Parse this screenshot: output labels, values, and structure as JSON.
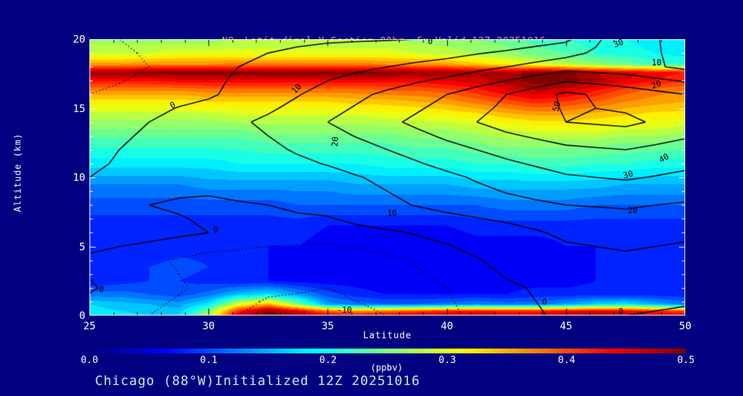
{
  "page": {
    "background": "#000080",
    "accent_axis_color": "#ffffff",
    "contour_line_color": "#000000"
  },
  "title": {
    "prefix": "NO",
    "subscript": "2",
    "rest": " Latitudinal Y-Section 00hr  Fx Valid 12Z 20251016",
    "color": "#ff8a8a"
  },
  "caption": {
    "text": "Chicago (88°W)Initialized 12Z 20251016",
    "color": "#bfeeee"
  },
  "axes": {
    "y_label": "Altitude (km)",
    "x_label": "Latitude",
    "y_ticks": [
      "0",
      "5",
      "10",
      "15",
      "20"
    ],
    "y_tick_values": [
      0,
      5,
      10,
      15,
      20
    ],
    "x_ticks": [
      "25",
      "30",
      "35",
      "40",
      "45",
      "50"
    ],
    "x_tick_values": [
      25,
      30,
      35,
      40,
      45,
      50
    ],
    "x_minor_step": 1,
    "y_minor_step": 1
  },
  "colorbar": {
    "unit": "(ppbv)",
    "ticks": [
      "0.0",
      "0.1",
      "0.2",
      "0.3",
      "0.4",
      "0.5"
    ],
    "tick_values": [
      0.0,
      0.1,
      0.2,
      0.3,
      0.4,
      0.5
    ],
    "range": [
      0,
      0.5
    ]
  },
  "chart_data": {
    "type": "heatmap",
    "title": "NO2 Latitudinal Y-Section 00hr  Fx Valid 12Z 20251016",
    "xlabel": "Latitude",
    "ylabel": "Altitude (km)",
    "x_range": [
      25,
      50
    ],
    "y_range": [
      0,
      20
    ],
    "fill_units": "ppbv",
    "fill_range": [
      0,
      0.5
    ],
    "colormap": "jet",
    "fill_lats": [
      25,
      26.25,
      27.5,
      28.75,
      30,
      31.25,
      32.5,
      33.75,
      35,
      36.25,
      37.5,
      38.75,
      40,
      41.25,
      42.5,
      43.75,
      45,
      46.25,
      47.5,
      48.75,
      50
    ],
    "fill_alts": [
      0,
      0.3,
      0.8,
      1.5,
      2.5,
      3.5,
      5,
      6.5,
      8,
      9.5,
      11,
      12.5,
      13.5,
      14.5,
      15.5,
      16.3,
      17,
      17.6,
      18.2,
      19,
      20
    ],
    "fill_values": [
      [
        0.19,
        0.18,
        0.17,
        0.17,
        0.28,
        0.46,
        0.5,
        0.48,
        0.45,
        0.44,
        0.45,
        0.46,
        0.47,
        0.47,
        0.46,
        0.46,
        0.47,
        0.48,
        0.47,
        0.46,
        0.45
      ],
      [
        0.18,
        0.17,
        0.16,
        0.16,
        0.25,
        0.42,
        0.5,
        0.45,
        0.38,
        0.36,
        0.38,
        0.4,
        0.42,
        0.43,
        0.42,
        0.42,
        0.44,
        0.45,
        0.44,
        0.42,
        0.4
      ],
      [
        0.17,
        0.16,
        0.15,
        0.14,
        0.18,
        0.3,
        0.35,
        0.25,
        0.14,
        0.12,
        0.11,
        0.11,
        0.12,
        0.13,
        0.12,
        0.12,
        0.14,
        0.17,
        0.18,
        0.15,
        0.12
      ],
      [
        0.12,
        0.12,
        0.11,
        0.1,
        0.12,
        0.16,
        0.18,
        0.14,
        0.1,
        0.08,
        0.07,
        0.07,
        0.07,
        0.07,
        0.07,
        0.08,
        0.08,
        0.08,
        0.08,
        0.08,
        0.08
      ],
      [
        0.07,
        0.08,
        0.09,
        0.09,
        0.08,
        0.07,
        0.07,
        0.06,
        0.06,
        0.06,
        0.05,
        0.05,
        0.05,
        0.06,
        0.06,
        0.06,
        0.06,
        0.07,
        0.07,
        0.07,
        0.07
      ],
      [
        0.07,
        0.08,
        0.09,
        0.1,
        0.09,
        0.08,
        0.07,
        0.06,
        0.06,
        0.05,
        0.05,
        0.05,
        0.05,
        0.05,
        0.06,
        0.06,
        0.06,
        0.07,
        0.07,
        0.07,
        0.07
      ],
      [
        0.07,
        0.07,
        0.07,
        0.08,
        0.08,
        0.08,
        0.07,
        0.07,
        0.06,
        0.06,
        0.05,
        0.05,
        0.05,
        0.06,
        0.06,
        0.06,
        0.07,
        0.07,
        0.07,
        0.07,
        0.07
      ],
      [
        0.08,
        0.08,
        0.08,
        0.08,
        0.08,
        0.08,
        0.08,
        0.08,
        0.07,
        0.07,
        0.07,
        0.07,
        0.07,
        0.08,
        0.08,
        0.08,
        0.08,
        0.08,
        0.08,
        0.08,
        0.08
      ],
      [
        0.1,
        0.1,
        0.1,
        0.1,
        0.1,
        0.1,
        0.1,
        0.11,
        0.11,
        0.11,
        0.11,
        0.11,
        0.11,
        0.11,
        0.12,
        0.12,
        0.12,
        0.11,
        0.11,
        0.11,
        0.11
      ],
      [
        0.13,
        0.13,
        0.13,
        0.13,
        0.14,
        0.14,
        0.14,
        0.14,
        0.14,
        0.15,
        0.15,
        0.15,
        0.15,
        0.16,
        0.16,
        0.16,
        0.16,
        0.16,
        0.15,
        0.15,
        0.15
      ],
      [
        0.18,
        0.18,
        0.18,
        0.18,
        0.18,
        0.19,
        0.19,
        0.19,
        0.19,
        0.19,
        0.2,
        0.2,
        0.2,
        0.21,
        0.21,
        0.22,
        0.22,
        0.21,
        0.21,
        0.2,
        0.2
      ],
      [
        0.22,
        0.22,
        0.22,
        0.22,
        0.22,
        0.22,
        0.23,
        0.23,
        0.23,
        0.23,
        0.23,
        0.24,
        0.24,
        0.25,
        0.26,
        0.26,
        0.26,
        0.26,
        0.25,
        0.25,
        0.24
      ],
      [
        0.25,
        0.25,
        0.25,
        0.25,
        0.25,
        0.25,
        0.26,
        0.26,
        0.26,
        0.26,
        0.26,
        0.27,
        0.27,
        0.28,
        0.29,
        0.3,
        0.3,
        0.3,
        0.29,
        0.29,
        0.28
      ],
      [
        0.28,
        0.28,
        0.28,
        0.28,
        0.28,
        0.29,
        0.29,
        0.29,
        0.29,
        0.29,
        0.3,
        0.3,
        0.31,
        0.32,
        0.34,
        0.35,
        0.35,
        0.34,
        0.33,
        0.32,
        0.32
      ],
      [
        0.32,
        0.32,
        0.32,
        0.32,
        0.33,
        0.33,
        0.33,
        0.33,
        0.33,
        0.34,
        0.34,
        0.35,
        0.36,
        0.38,
        0.4,
        0.42,
        0.41,
        0.39,
        0.37,
        0.36,
        0.35
      ],
      [
        0.37,
        0.37,
        0.37,
        0.37,
        0.38,
        0.38,
        0.38,
        0.38,
        0.38,
        0.38,
        0.39,
        0.39,
        0.4,
        0.42,
        0.45,
        0.47,
        0.46,
        0.43,
        0.4,
        0.38,
        0.37
      ],
      [
        0.43,
        0.43,
        0.43,
        0.44,
        0.44,
        0.44,
        0.44,
        0.44,
        0.44,
        0.44,
        0.44,
        0.44,
        0.45,
        0.46,
        0.48,
        0.5,
        0.5,
        0.48,
        0.45,
        0.43,
        0.41
      ],
      [
        0.49,
        0.49,
        0.5,
        0.5,
        0.5,
        0.5,
        0.5,
        0.5,
        0.5,
        0.5,
        0.5,
        0.49,
        0.49,
        0.48,
        0.48,
        0.5,
        0.5,
        0.47,
        0.46,
        0.44,
        0.43
      ],
      [
        0.36,
        0.36,
        0.37,
        0.37,
        0.37,
        0.38,
        0.38,
        0.38,
        0.38,
        0.38,
        0.37,
        0.37,
        0.36,
        0.34,
        0.32,
        0.3,
        0.28,
        0.26,
        0.24,
        0.22,
        0.21
      ],
      [
        0.29,
        0.29,
        0.29,
        0.3,
        0.3,
        0.3,
        0.3,
        0.3,
        0.3,
        0.3,
        0.3,
        0.29,
        0.28,
        0.27,
        0.26,
        0.24,
        0.23,
        0.21,
        0.2,
        0.19,
        0.18
      ],
      [
        0.26,
        0.26,
        0.26,
        0.26,
        0.26,
        0.27,
        0.27,
        0.27,
        0.27,
        0.27,
        0.27,
        0.26,
        0.26,
        0.25,
        0.24,
        0.22,
        0.21,
        0.2,
        0.19,
        0.18,
        0.17
      ]
    ],
    "contour_lats": [
      25,
      27.5,
      30,
      32.5,
      35,
      37.5,
      40,
      42.5,
      45,
      47.5,
      50
    ],
    "contour_alts": [
      0,
      2,
      4,
      6,
      8,
      10,
      12,
      14,
      16,
      18,
      20
    ],
    "contour_values": [
      [
        -2,
        -5,
        -8,
        -12,
        -12,
        -10,
        -6,
        -2,
        1,
        0,
        -1
      ],
      [
        0.5,
        -3,
        -6,
        -9,
        -10,
        -8,
        -5,
        -1,
        2,
        3,
        2
      ],
      [
        -1,
        -4,
        -7,
        -8,
        -8,
        -6,
        -3,
        2,
        6,
        8,
        6
      ],
      [
        3,
        2,
        0,
        -2,
        -3,
        -1,
        2,
        6,
        12,
        14,
        12
      ],
      [
        1,
        0,
        -1,
        0,
        2,
        8,
        13,
        17,
        20,
        21,
        19
      ],
      [
        0,
        1,
        2,
        4,
        7,
        12,
        18,
        24,
        29,
        31,
        28
      ],
      [
        -1,
        1,
        4,
        8,
        14,
        20,
        27,
        33,
        38,
        40,
        36
      ],
      [
        -2,
        0,
        5,
        12,
        20,
        28,
        36,
        44,
        50,
        52,
        46
      ],
      [
        -5,
        -3,
        -1,
        5,
        14,
        22,
        30,
        40,
        52,
        46,
        40
      ],
      [
        -8,
        -5,
        -2,
        2,
        6,
        10,
        14,
        20,
        26,
        24,
        18
      ],
      [
        -6,
        -4,
        -3,
        -2,
        -1,
        -0.5,
        0.5,
        3,
        8,
        28,
        14
      ]
    ],
    "contour_levels_solid": [
      0,
      10,
      20,
      30,
      40,
      50
    ],
    "contour_levels_dotted": [
      -10,
      -5
    ],
    "contour_labels": [
      {
        "text": "0",
        "lat": 28.5,
        "alt": 15.2,
        "rot": -25
      },
      {
        "text": "10",
        "lat": 33.7,
        "alt": 16.4,
        "rot": -45
      },
      {
        "text": "20",
        "lat": 35.3,
        "alt": 12.6,
        "rot": -85
      },
      {
        "text": "0",
        "lat": 39.3,
        "alt": 19.85,
        "rot": 0
      },
      {
        "text": "50",
        "lat": 44.6,
        "alt": 15.1,
        "rot": -75
      },
      {
        "text": "30",
        "lat": 47.2,
        "alt": 19.7,
        "rot": -20
      },
      {
        "text": "10",
        "lat": 48.8,
        "alt": 18.3,
        "rot": 0
      },
      {
        "text": "20",
        "lat": 48.8,
        "alt": 16.7,
        "rot": -20
      },
      {
        "text": "40",
        "lat": 49.1,
        "alt": 11.4,
        "rot": -30
      },
      {
        "text": "30",
        "lat": 47.6,
        "alt": 10.2,
        "rot": -15
      },
      {
        "text": "20",
        "lat": 47.8,
        "alt": 7.6,
        "rot": 0
      },
      {
        "text": "10",
        "lat": 37.7,
        "alt": 7.4,
        "rot": 0
      },
      {
        "text": "0",
        "lat": 30.3,
        "alt": 6.2,
        "rot": 0
      },
      {
        "text": "0",
        "lat": 44.1,
        "alt": 1.0,
        "rot": 0
      },
      {
        "text": "0",
        "lat": 47.3,
        "alt": 0.3,
        "rot": 0
      },
      {
        "text": "-10",
        "lat": 35.7,
        "alt": 0.4,
        "rot": 0
      },
      {
        "text": "0",
        "lat": 25.5,
        "alt": 1.9,
        "rot": 0
      }
    ]
  }
}
